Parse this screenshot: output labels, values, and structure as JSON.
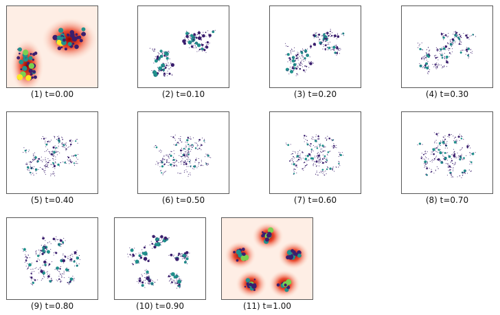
{
  "chart_data": {
    "type": "scatter",
    "panels": [
      {
        "caption": "(1) t=0.00",
        "t": 0.0
      },
      {
        "caption": "(2) t=0.10",
        "t": 0.1
      },
      {
        "caption": "(3) t=0.20",
        "t": 0.2
      },
      {
        "caption": "(4) t=0.30",
        "t": 0.3
      },
      {
        "caption": "(5) t=0.40",
        "t": 0.4
      },
      {
        "caption": "(6) t=0.50",
        "t": 0.5
      },
      {
        "caption": "(7) t=0.60",
        "t": 0.6
      },
      {
        "caption": "(8) t=0.70",
        "t": 0.7
      },
      {
        "caption": "(9) t=0.80",
        "t": 0.8
      },
      {
        "caption": "(10) t=0.90",
        "t": 0.9
      },
      {
        "caption": "(11) t=1.00",
        "t": 1.0
      }
    ],
    "colors": {
      "heat_core": "#8b0000",
      "heat_mid": "#e8391c",
      "heat_edge": "#fde0cf",
      "point_dark": "#3b1f6e",
      "point_teal": "#21918c",
      "point_green": "#7ad151",
      "point_yellow": "#fde725",
      "frame": "#555555"
    }
  }
}
